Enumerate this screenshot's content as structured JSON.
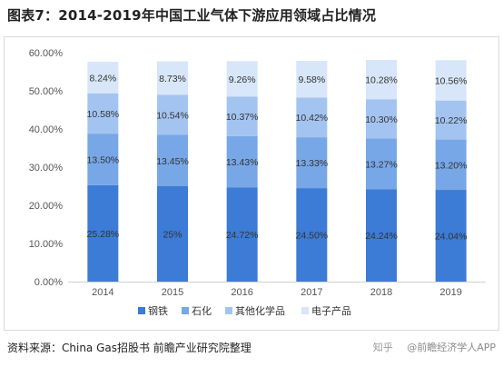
{
  "title": "图表7：2014-2019年中国工业气体下游应用领域占比情况",
  "source": "资料来源：China Gas招股书 前瞻产业研究院整理",
  "brand": {
    "zhihu": "知乎",
    "account": "@前瞻经济学人APP"
  },
  "colors": {
    "steel": "#3c7bd6",
    "petrochem": "#77a7e6",
    "other_chem": "#a3c4f0",
    "electronics": "#d7e6f8",
    "axis_text": "#555555",
    "label_text": "#333333"
  },
  "chart_data": {
    "type": "bar",
    "stacked": true,
    "categories": [
      "2014",
      "2015",
      "2016",
      "2017",
      "2018",
      "2019"
    ],
    "ylim": [
      0,
      60
    ],
    "yticks": [
      "0.00%",
      "10.00%",
      "20.00%",
      "30.00%",
      "40.00%",
      "50.00%",
      "60.00%"
    ],
    "grid": false,
    "legend_position": "bottom",
    "series": [
      {
        "name": "钢铁",
        "color": "#3c7bd6",
        "values": [
          25.28,
          25,
          24.72,
          24.5,
          24.24,
          24.04
        ],
        "labels": [
          "25.28%",
          "25%",
          "24.72%",
          "24.50%",
          "24.24%",
          "24.04%"
        ]
      },
      {
        "name": "石化",
        "color": "#77a7e6",
        "values": [
          13.5,
          13.45,
          13.43,
          13.33,
          13.27,
          13.2
        ],
        "labels": [
          "13.50%",
          "13.45%",
          "13.43%",
          "13.33%",
          "13.27%",
          "13.20%"
        ]
      },
      {
        "name": "其他化学品",
        "color": "#a3c4f0",
        "values": [
          10.58,
          10.54,
          10.37,
          10.42,
          10.3,
          10.22
        ],
        "labels": [
          "10.58%",
          "10.54%",
          "10.37%",
          "10.42%",
          "10.30%",
          "10.22%"
        ]
      },
      {
        "name": "电子产品",
        "color": "#d7e6f8",
        "values": [
          8.24,
          8.73,
          9.26,
          9.58,
          10.28,
          10.56
        ],
        "labels": [
          "8.24%",
          "8.73%",
          "9.26%",
          "9.58%",
          "10.28%",
          "10.56%"
        ]
      }
    ]
  }
}
